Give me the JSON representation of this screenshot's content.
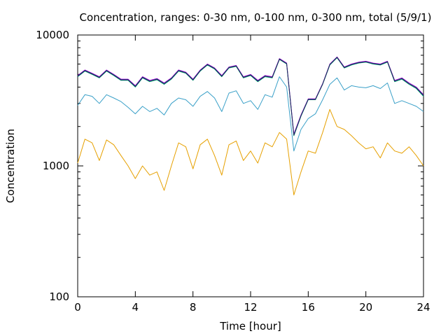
{
  "chart_data": {
    "type": "line",
    "title": "Concentration, ranges: 0-30 nm, 0-100 nm, 0-300 nm, total (5/9/1)",
    "xlabel": "Time [hour]",
    "ylabel": "Concentration",
    "xlim": [
      0,
      24
    ],
    "ylim": [
      100,
      10000
    ],
    "yscale": "log",
    "grid": false,
    "x_ticks": [
      0,
      4,
      8,
      12,
      16,
      20,
      24
    ],
    "x_tick_labels": [
      "0",
      "4",
      "8",
      "12",
      "16",
      "20",
      "24"
    ],
    "y_ticks": [
      100,
      1000,
      10000
    ],
    "y_tick_labels": [
      "100",
      "1000",
      "10000"
    ],
    "x": [
      0,
      0.5,
      1,
      1.5,
      2,
      2.5,
      3,
      3.5,
      4,
      4.5,
      5,
      5.5,
      6,
      6.5,
      7,
      7.5,
      8,
      8.5,
      9,
      9.5,
      10,
      10.5,
      11,
      11.5,
      12,
      12.5,
      13,
      13.5,
      14,
      14.5,
      15,
      15.5,
      16,
      16.5,
      17,
      17.5,
      18,
      18.5,
      19,
      19.5,
      20,
      20.5,
      21,
      21.5,
      22,
      22.5,
      23,
      23.5,
      24
    ],
    "series": [
      {
        "color": "#e6a000",
        "values": [
          1050,
          1600,
          1500,
          1100,
          1580,
          1450,
          1200,
          1000,
          800,
          1000,
          850,
          900,
          650,
          1000,
          1500,
          1400,
          950,
          1450,
          1600,
          1200,
          850,
          1450,
          1550,
          1100,
          1300,
          1050,
          1500,
          1400,
          1800,
          1600,
          600,
          900,
          1300,
          1250,
          1800,
          2700,
          2000,
          1900,
          1700,
          1500,
          1350,
          1400,
          1150,
          1500,
          1300,
          1250,
          1400,
          1200,
          1000
        ]
      },
      {
        "color": "#3aa0c8",
        "values": [
          2900,
          3500,
          3400,
          3000,
          3500,
          3300,
          3100,
          2800,
          2500,
          2850,
          2600,
          2750,
          2450,
          3000,
          3300,
          3200,
          2850,
          3400,
          3700,
          3300,
          2600,
          3600,
          3750,
          3000,
          3150,
          2700,
          3500,
          3350,
          4800,
          4000,
          1300,
          1900,
          2300,
          2500,
          3200,
          4200,
          4700,
          3800,
          4100,
          4000,
          3950,
          4100,
          3900,
          4300,
          3000,
          3150,
          3000,
          2850,
          2600
        ]
      },
      {
        "color": "#009e73",
        "values": [
          4800,
          5300,
          5000,
          4700,
          5300,
          4900,
          4500,
          4500,
          4000,
          4700,
          4400,
          4550,
          4200,
          4600,
          5300,
          5100,
          4500,
          5300,
          5900,
          5500,
          4800,
          5600,
          5750,
          4700,
          4900,
          4400,
          4800,
          4700,
          6500,
          6000,
          1700,
          2400,
          3200,
          3200,
          4200,
          5900,
          6700,
          5600,
          5900,
          6100,
          6200,
          6000,
          5900,
          6200,
          4400,
          4600,
          4200,
          3900,
          3400
        ]
      },
      {
        "color": "#9400d3",
        "values": [
          4900,
          5400,
          5100,
          4800,
          5400,
          5000,
          4600,
          4600,
          4100,
          4800,
          4500,
          4650,
          4300,
          4700,
          5400,
          5200,
          4600,
          5400,
          6000,
          5600,
          4900,
          5700,
          5850,
          4800,
          5000,
          4500,
          4900,
          4800,
          6600,
          6100,
          1750,
          2450,
          3250,
          3250,
          4250,
          6000,
          6800,
          5700,
          6000,
          6200,
          6300,
          6100,
          6000,
          6300,
          4500,
          4700,
          4300,
          4000,
          3500
        ]
      },
      {
        "color": "#1a2a5a",
        "values": [
          4850,
          5350,
          5050,
          4750,
          5350,
          4950,
          4550,
          4550,
          4050,
          4750,
          4450,
          4600,
          4250,
          4650,
          5350,
          5150,
          4550,
          5350,
          5950,
          5550,
          4850,
          5650,
          5800,
          4750,
          4950,
          4450,
          4850,
          4750,
          6550,
          6050,
          1720,
          2420,
          3220,
          3220,
          4220,
          5950,
          6750,
          5650,
          5950,
          6150,
          6250,
          6050,
          5950,
          6250,
          4450,
          4650,
          4250,
          3950,
          3450
        ]
      }
    ]
  }
}
